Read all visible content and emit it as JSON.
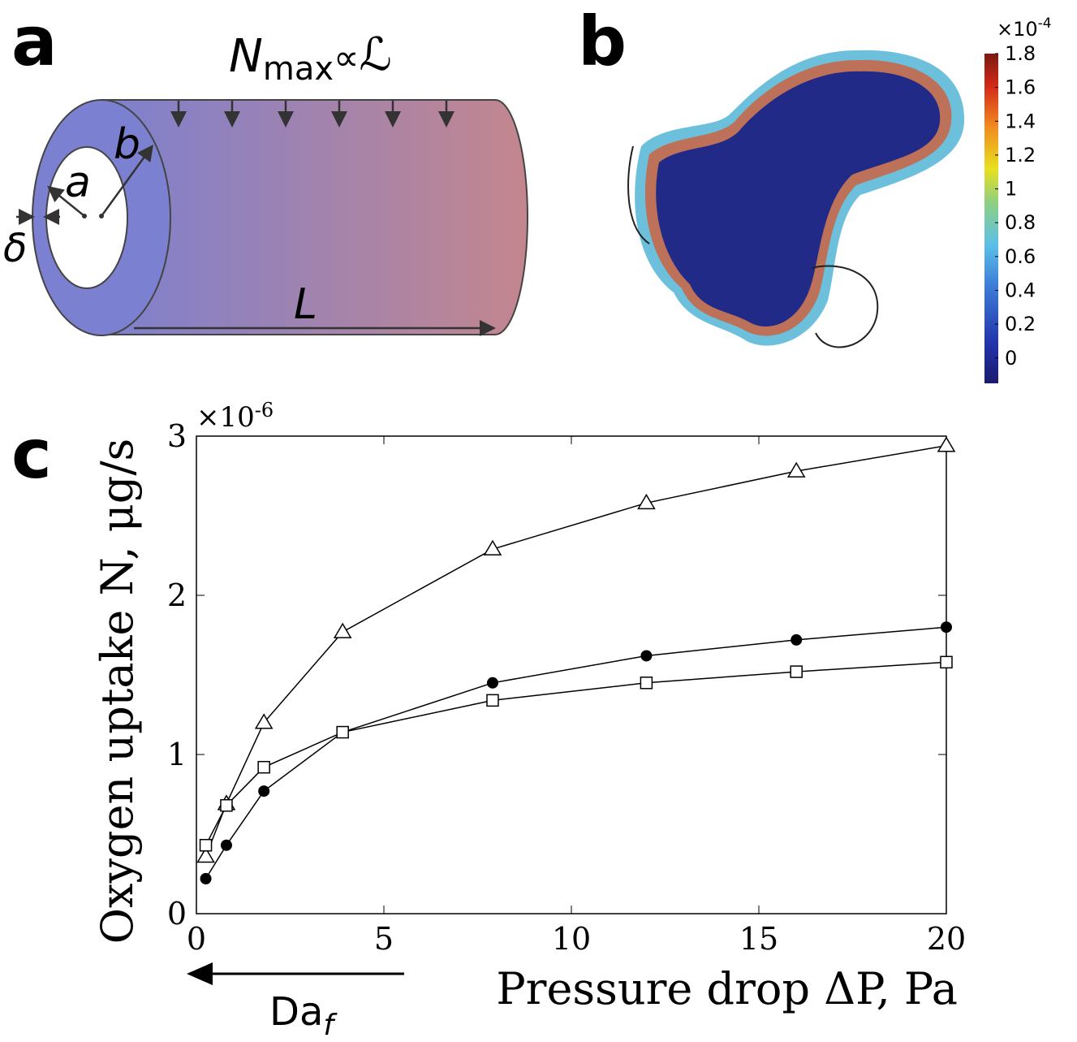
{
  "panel_a": {
    "label": "a",
    "flux_symbol": "N",
    "flux_sub": "max",
    "proportional": "∝",
    "length_symbol": "ℒ",
    "outer_radius": "b",
    "inner_radius": "a",
    "thickness": "δ",
    "length": "L"
  },
  "panel_b": {
    "label": "b",
    "colorbar": {
      "multiplier": "×10",
      "exponent": "-4",
      "lim": [
        -0.15,
        1.8
      ],
      "ticks": [
        0,
        0.2,
        0.4,
        0.6,
        0.8,
        1,
        1.2,
        1.4,
        1.6,
        1.8
      ]
    }
  },
  "panel_c": {
    "label": "c",
    "arrow_label": "Da",
    "arrow_label_sub": "f"
  },
  "chart_data": {
    "type": "line",
    "x_label": "Pressure drop ΔP, Pa",
    "y_label": "Oxygen uptake N, μg/s",
    "y_multiplier": "×10",
    "y_multiplier_exp": "-6",
    "x": [
      0.25,
      0.8,
      1.8,
      3.9,
      7.9,
      12,
      16,
      20
    ],
    "xlim": [
      0,
      20
    ],
    "xticks": [
      0,
      5,
      10,
      15,
      20
    ],
    "ylim": [
      0,
      3
    ],
    "yticks": [
      0,
      1,
      2,
      3
    ],
    "series": [
      {
        "marker": "triangle",
        "color": "#000000",
        "values": [
          0.36,
          0.69,
          1.2,
          1.77,
          2.29,
          2.58,
          2.78,
          2.94
        ]
      },
      {
        "marker": "circle",
        "color": "#000000",
        "values": [
          0.22,
          0.43,
          0.77,
          1.14,
          1.45,
          1.62,
          1.72,
          1.8
        ]
      },
      {
        "marker": "square",
        "color": "#000000",
        "values": [
          0.43,
          0.68,
          0.92,
          1.14,
          1.34,
          1.45,
          1.52,
          1.58
        ]
      }
    ]
  }
}
